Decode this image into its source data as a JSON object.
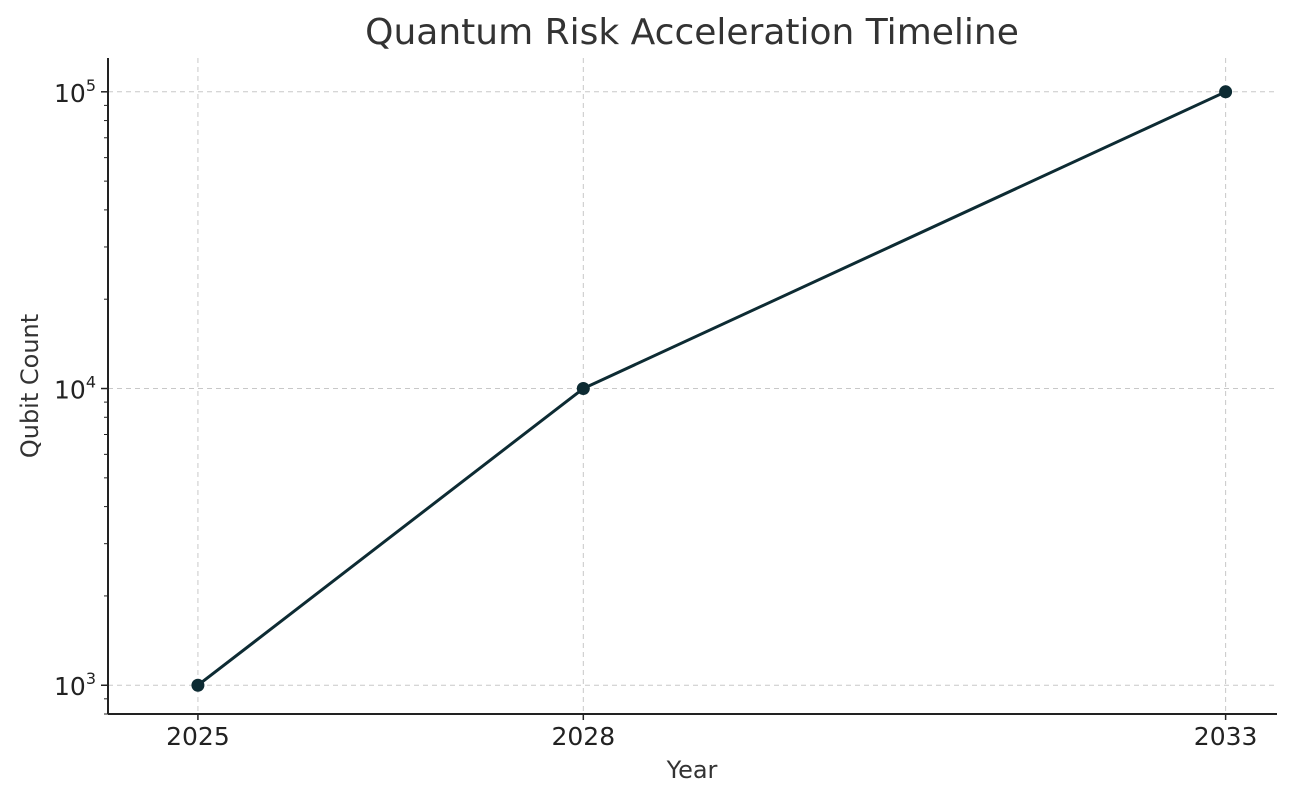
{
  "chart_data": {
    "type": "line",
    "title": "Quantum Risk Acceleration Timeline",
    "xlabel": "Year",
    "ylabel": "Qubit Count",
    "x": [
      2025,
      2028,
      2033
    ],
    "xticks": [
      "2025",
      "2028",
      "2033"
    ],
    "xlim": [
      2024.3,
      2033.4
    ],
    "y_scale": "log",
    "ylim": [
      800,
      130000
    ],
    "yticks": [
      {
        "value": 1000,
        "base": "10",
        "exp": "3"
      },
      {
        "value": 10000,
        "base": "10",
        "exp": "4"
      },
      {
        "value": 100000,
        "base": "10",
        "exp": "5"
      }
    ],
    "series": [
      {
        "values": [
          1000,
          10000,
          100000
        ],
        "color": "#0d2b33",
        "marker": "circle"
      }
    ],
    "grid": true,
    "legend": "none"
  }
}
